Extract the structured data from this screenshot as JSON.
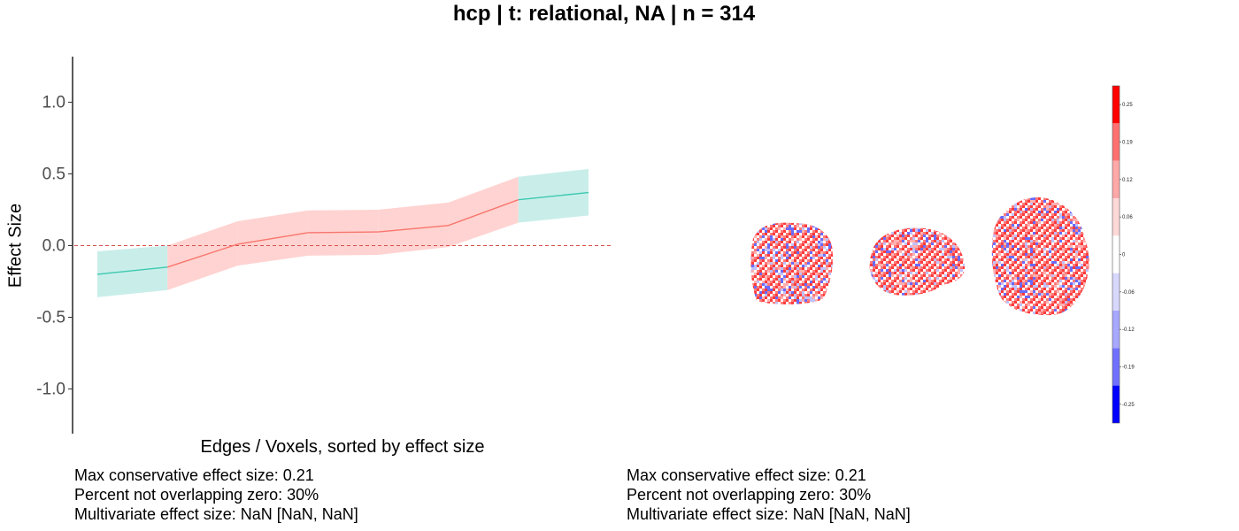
{
  "title": "hcp | t: relational, NA | n = 314",
  "chart_data": {
    "type": "line",
    "ylabel": "Effect Size",
    "xlabel": "Edges / Voxels, sorted by effect size",
    "ylim": [
      -1.3,
      1.3
    ],
    "yticks": [
      "-1.0",
      "-0.5",
      "0.0",
      "0.5",
      "1.0"
    ],
    "ytick_values": [
      -1.0,
      -0.5,
      0.0,
      0.5,
      1.0
    ],
    "reference_line": 0,
    "series": [
      {
        "values": [
          -0.2,
          -0.15,
          0.01,
          0.09,
          0.095,
          0.14,
          0.32,
          0.37
        ],
        "lower": [
          -0.36,
          -0.31,
          -0.14,
          -0.07,
          -0.065,
          -0.01,
          0.16,
          0.21
        ],
        "upper": [
          -0.04,
          0.0,
          0.17,
          0.245,
          0.25,
          0.3,
          0.48,
          0.535
        ],
        "overlap_zero": [
          false,
          true,
          true,
          true,
          true,
          true,
          false,
          false
        ]
      }
    ],
    "colors": {
      "overlapping": "#F8766D",
      "not_overlapping": "#3DC8B0",
      "band_overlapping": "#FFD3D1",
      "band_not_overlapping": "#C9EEEA",
      "reference": "#D9534F"
    },
    "colorbar": {
      "ticks": [
        "0.25",
        "0.19",
        "0.12",
        "0.06",
        "0",
        "-0.06",
        "-0.12",
        "-0.19",
        "-0.25"
      ],
      "colors": [
        "#FF0000",
        "#FF7070",
        "#FFA8A8",
        "#FFD8D8",
        "#FFFFFF",
        "#D8D8FF",
        "#A8A8FF",
        "#7070FF",
        "#0000FF"
      ]
    }
  },
  "left_stats": {
    "line1": "Max conservative effect size: 0.21",
    "line2": "Percent not overlapping zero: 30%",
    "line3": "Multivariate effect size: NaN [NaN, NaN]"
  },
  "right_stats": {
    "line1": "Max conservative effect size: 0.21",
    "line2": "Percent not overlapping zero: 30%",
    "line3": "Multivariate effect size: NaN [NaN, NaN]"
  }
}
